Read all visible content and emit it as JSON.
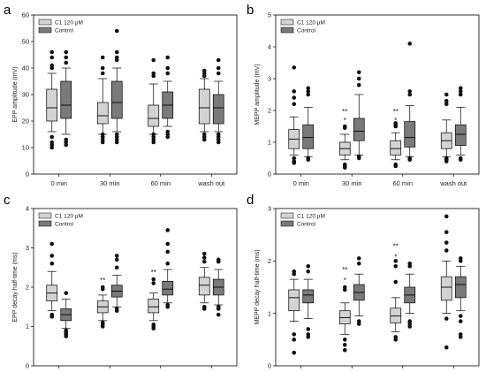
{
  "chart_data": [
    {
      "panel": "a",
      "type": "box",
      "ylabel": "EPP amplitude (mV)",
      "ylim": [
        0,
        60
      ],
      "yticks": [
        0,
        10,
        20,
        30,
        40,
        50,
        60
      ],
      "categories": [
        "0 min",
        "30 min",
        "60 min",
        "wash out"
      ],
      "legend": [
        {
          "name": "C1 120 µM",
          "color": "#d3d3d3"
        },
        {
          "name": "Control",
          "color": "#7a7a7a"
        }
      ],
      "series": [
        {
          "name": "C1 120 µM",
          "boxes": [
            {
              "whislo": 16,
              "q1": 20,
              "med": 25,
              "q3": 32,
              "whishi": 38,
              "fliers": [
                46,
                44,
                41,
                40,
                14,
                12,
                11,
                10
              ]
            },
            {
              "whislo": 15,
              "q1": 19,
              "med": 22,
              "q3": 27,
              "whishi": 36,
              "fliers": [
                44,
                40,
                38,
                15,
                14,
                13,
                12
              ]
            },
            {
              "whislo": 15,
              "q1": 18,
              "med": 21,
              "q3": 26,
              "whishi": 34,
              "fliers": [
                43,
                38,
                37,
                15,
                14,
                13,
                12
              ]
            },
            {
              "whislo": 16,
              "q1": 19,
              "med": 25,
              "q3": 32,
              "whishi": 36,
              "fliers": [
                39,
                38,
                37,
                15,
                14,
                13
              ]
            }
          ]
        },
        {
          "name": "Control",
          "boxes": [
            {
              "whislo": 15,
              "q1": 21,
              "med": 26,
              "q3": 35,
              "whishi": 40,
              "fliers": [
                46,
                44,
                42,
                13,
                12,
                11
              ]
            },
            {
              "whislo": 16,
              "q1": 21,
              "med": 27,
              "q3": 35,
              "whishi": 40,
              "fliers": [
                54,
                46,
                44,
                43,
                15,
                14,
                13,
                12
              ]
            },
            {
              "whislo": 18,
              "q1": 21,
              "med": 26,
              "q3": 31,
              "whishi": 35,
              "fliers": [
                44,
                40,
                38,
                16,
                15,
                14
              ]
            },
            {
              "whislo": 16,
              "q1": 19,
              "med": 25,
              "q3": 30,
              "whishi": 35,
              "fliers": [
                43,
                40,
                38,
                15,
                14,
                13,
                12
              ]
            }
          ]
        }
      ],
      "annotations": []
    },
    {
      "panel": "b",
      "type": "box",
      "ylabel": "MEPP amplitude (mV)",
      "ylim": [
        0,
        5
      ],
      "yticks": [
        0,
        1,
        2,
        3,
        4,
        5
      ],
      "categories": [
        "0 min",
        "30 min",
        "60 min",
        "wash out"
      ],
      "legend": [
        {
          "name": "C1 120 µM",
          "color": "#d3d3d3"
        },
        {
          "name": "Control",
          "color": "#7a7a7a"
        }
      ],
      "series": [
        {
          "name": "C1 120 µM",
          "boxes": [
            {
              "whislo": 0.6,
              "q1": 0.8,
              "med": 1.1,
              "q3": 1.4,
              "whishi": 1.8,
              "fliers": [
                3.35,
                2.6,
                2.4,
                2.2,
                0.5,
                0.4,
                0.35
              ]
            },
            {
              "whislo": 0.45,
              "q1": 0.6,
              "med": 0.8,
              "q3": 1.0,
              "whishi": 1.25,
              "fliers": [
                1.5,
                1.45,
                0.3,
                0.25,
                0.2
              ]
            },
            {
              "whislo": 0.45,
              "q1": 0.6,
              "med": 0.8,
              "q3": 1.05,
              "whishi": 1.3,
              "fliers": [
                1.6,
                1.55,
                1.5,
                0.3,
                0.25
              ]
            },
            {
              "whislo": 0.55,
              "q1": 0.8,
              "med": 1.05,
              "q3": 1.3,
              "whishi": 1.7,
              "fliers": [
                2.5,
                2.3,
                2.2,
                0.5,
                0.45,
                0.4
              ]
            }
          ]
        },
        {
          "name": "Control",
          "boxes": [
            {
              "whislo": 0.55,
              "q1": 0.8,
              "med": 1.15,
              "q3": 1.55,
              "whishi": 2.1,
              "fliers": [
                2.7,
                2.6,
                2.5,
                0.5,
                0.45
              ]
            },
            {
              "whislo": 0.6,
              "q1": 1.05,
              "med": 1.35,
              "q3": 1.75,
              "whishi": 2.5,
              "fliers": [
                3.2,
                3.0,
                2.8,
                0.55,
                0.5
              ]
            },
            {
              "whislo": 0.55,
              "q1": 0.85,
              "med": 1.15,
              "q3": 1.65,
              "whishi": 2.15,
              "fliers": [
                4.1,
                2.6,
                2.5,
                0.5,
                0.45
              ]
            },
            {
              "whislo": 0.6,
              "q1": 0.9,
              "med": 1.25,
              "q3": 1.55,
              "whishi": 2.1,
              "fliers": [
                2.7,
                2.6,
                2.5,
                0.5,
                0.45
              ]
            }
          ]
        }
      ],
      "annotations": [
        {
          "category": 1,
          "series": 0,
          "text": "**",
          "y": 2.0
        },
        {
          "category": 1,
          "series": 0,
          "text": "*",
          "y": 1.72
        },
        {
          "category": 2,
          "series": 0,
          "text": "**",
          "y": 2.0
        },
        {
          "category": 2,
          "series": 0,
          "text": "*",
          "y": 1.72
        }
      ]
    },
    {
      "panel": "c",
      "type": "box",
      "ylabel": "EPP decay half-time (ms)",
      "ylim": [
        0,
        4
      ],
      "yticks": [
        0,
        1,
        2,
        3,
        4
      ],
      "categories": [
        "0 min",
        "30 min",
        "60 min",
        "wash out"
      ],
      "legend": [
        {
          "name": "C1 120 µM",
          "color": "#d3d3d3"
        },
        {
          "name": "Control",
          "color": "#7a7a7a"
        }
      ],
      "series": [
        {
          "name": "C1 120 µM",
          "boxes": [
            {
              "whislo": 1.4,
              "q1": 1.65,
              "med": 1.85,
              "q3": 2.05,
              "whishi": 2.4,
              "fliers": [
                3.1,
                2.8,
                2.6,
                1.3,
                1.25
              ]
            },
            {
              "whislo": 1.15,
              "q1": 1.35,
              "med": 1.5,
              "q3": 1.65,
              "whishi": 1.8,
              "fliers": [
                2.0,
                1.95,
                1.1,
                1.05,
                1.0
              ]
            },
            {
              "whislo": 1.15,
              "q1": 1.35,
              "med": 1.5,
              "q3": 1.7,
              "whishi": 1.85,
              "fliers": [
                2.2,
                2.1,
                1.05,
                1.0,
                0.95
              ]
            },
            {
              "whislo": 1.6,
              "q1": 1.8,
              "med": 2.05,
              "q3": 2.25,
              "whishi": 2.5,
              "fliers": [
                2.85,
                2.75,
                2.65,
                1.5,
                1.45
              ]
            }
          ]
        },
        {
          "name": "Control",
          "boxes": [
            {
              "whislo": 0.95,
              "q1": 1.15,
              "med": 1.3,
              "q3": 1.45,
              "whishi": 1.7,
              "fliers": [
                1.85,
                0.9,
                0.85,
                0.8,
                0.75
              ]
            },
            {
              "whislo": 1.5,
              "q1": 1.75,
              "med": 1.9,
              "q3": 2.05,
              "whishi": 2.3,
              "fliers": [
                2.8,
                2.7,
                2.5,
                1.45,
                1.4
              ]
            },
            {
              "whislo": 1.6,
              "q1": 1.8,
              "med": 1.95,
              "q3": 2.15,
              "whishi": 2.45,
              "fliers": [
                3.45,
                3.1,
                2.9,
                2.6,
                1.55,
                1.5
              ]
            },
            {
              "whislo": 1.55,
              "q1": 1.8,
              "med": 2.0,
              "q3": 2.2,
              "whishi": 2.45,
              "fliers": [
                2.7,
                2.65,
                1.5,
                1.45,
                1.3
              ]
            }
          ]
        }
      ],
      "annotations": [
        {
          "category": 1,
          "series": 0,
          "text": "**",
          "y": 2.2
        },
        {
          "category": 1,
          "series": 0,
          "text": "*",
          "y": 1.97
        },
        {
          "category": 2,
          "series": 0,
          "text": "**",
          "y": 2.4
        },
        {
          "category": 2,
          "series": 0,
          "text": "*",
          "y": 2.17
        }
      ]
    },
    {
      "panel": "d",
      "type": "box",
      "ylabel": "MEPP decay half-time (ms)",
      "ylim": [
        0,
        3
      ],
      "yticks": [
        0,
        1,
        2,
        3
      ],
      "categories": [
        "0 min",
        "30 min",
        "60 min",
        "wash out"
      ],
      "legend": [
        {
          "name": "C1 120 µM",
          "color": "#d3d3d3"
        },
        {
          "name": "Control",
          "color": "#7a7a7a"
        }
      ],
      "series": [
        {
          "name": "C1 120 µM",
          "boxes": [
            {
              "whislo": 0.85,
              "q1": 1.05,
              "med": 1.3,
              "q3": 1.45,
              "whishi": 1.65,
              "fliers": [
                1.8,
                1.75,
                0.6,
                0.5,
                0.25
              ]
            },
            {
              "whislo": 0.6,
              "q1": 0.8,
              "med": 0.92,
              "q3": 1.05,
              "whishi": 1.2,
              "fliers": [
                1.5,
                1.45,
                0.5,
                0.4,
                0.3
              ]
            },
            {
              "whislo": 0.65,
              "q1": 0.82,
              "med": 0.95,
              "q3": 1.1,
              "whishi": 1.3,
              "fliers": [
                2.0,
                1.9,
                1.6,
                0.55,
                0.5
              ]
            },
            {
              "whislo": 1.0,
              "q1": 1.25,
              "med": 1.5,
              "q3": 1.7,
              "whishi": 2.0,
              "fliers": [
                2.85,
                2.55,
                2.35,
                2.2,
                0.9,
                0.35
              ]
            }
          ]
        },
        {
          "name": "Control",
          "boxes": [
            {
              "whislo": 0.9,
              "q1": 1.2,
              "med": 1.35,
              "q3": 1.45,
              "whishi": 1.65,
              "fliers": [
                1.9,
                1.8,
                0.7,
                0.6,
                0.55
              ]
            },
            {
              "whislo": 0.95,
              "q1": 1.25,
              "med": 1.4,
              "q3": 1.55,
              "whishi": 1.75,
              "fliers": [
                2.05,
                1.95,
                0.85,
                0.8
              ]
            },
            {
              "whislo": 1.0,
              "q1": 1.2,
              "med": 1.35,
              "q3": 1.5,
              "whishi": 1.75,
              "fliers": [
                1.95,
                1.9,
                0.85,
                0.8,
                0.75
              ]
            },
            {
              "whislo": 1.05,
              "q1": 1.3,
              "med": 1.55,
              "q3": 1.7,
              "whishi": 1.9,
              "fliers": [
                2.05,
                2.0,
                0.95,
                0.85,
                0.6,
                0.55
              ]
            }
          ]
        }
      ],
      "annotations": [
        {
          "category": 1,
          "series": 0,
          "text": "**",
          "y": 1.85
        },
        {
          "category": 1,
          "series": 0,
          "text": "*",
          "y": 1.65
        },
        {
          "category": 2,
          "series": 0,
          "text": "**",
          "y": 2.3
        },
        {
          "category": 2,
          "series": 0,
          "text": "*",
          "y": 2.1
        }
      ]
    }
  ]
}
